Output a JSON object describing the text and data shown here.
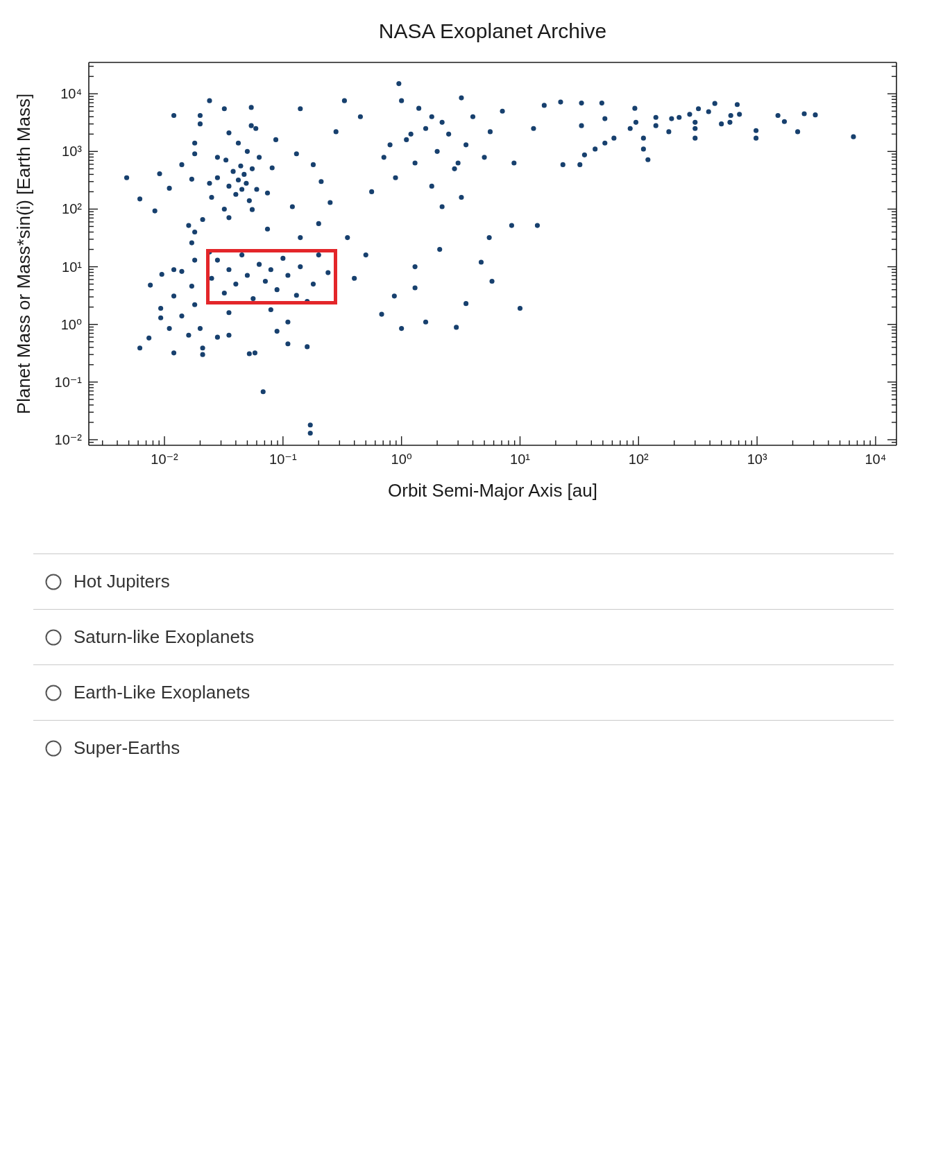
{
  "chart_data": {
    "type": "scatter",
    "title": "NASA Exoplanet Archive",
    "xlabel": "Orbit Semi-Major Axis [au]",
    "ylabel": "Planet Mass or Mass*sin(i) [Earth Mass]",
    "log": "xy",
    "marker": "circle",
    "color": "#17406e",
    "xlim": [
      0.0023,
      15000
    ],
    "ylim": [
      0.008,
      35000
    ],
    "xticks": [
      {
        "value": 0.003,
        "label": null
      },
      {
        "value": 0.004,
        "label": null
      },
      {
        "value": 0.005,
        "label": null
      },
      {
        "value": 0.006,
        "label": null
      },
      {
        "value": 0.007,
        "label": null
      },
      {
        "value": 0.008,
        "label": null
      },
      {
        "value": 0.009,
        "label": null
      },
      {
        "value": 0.01,
        "label": "10⁻²"
      },
      {
        "value": 0.02,
        "label": null
      },
      {
        "value": 0.03,
        "label": null
      },
      {
        "value": 0.04,
        "label": null
      },
      {
        "value": 0.05,
        "label": null
      },
      {
        "value": 0.06,
        "label": null
      },
      {
        "value": 0.07,
        "label": null
      },
      {
        "value": 0.08,
        "label": null
      },
      {
        "value": 0.09,
        "label": null
      },
      {
        "value": 0.1,
        "label": "10⁻¹"
      },
      {
        "value": 0.2,
        "label": null
      },
      {
        "value": 0.3,
        "label": null
      },
      {
        "value": 0.4,
        "label": null
      },
      {
        "value": 0.5,
        "label": null
      },
      {
        "value": 0.6,
        "label": null
      },
      {
        "value": 0.7,
        "label": null
      },
      {
        "value": 0.8,
        "label": null
      },
      {
        "value": 0.9,
        "label": null
      },
      {
        "value": 1,
        "label": "10⁰"
      },
      {
        "value": 2,
        "label": null
      },
      {
        "value": 3,
        "label": null
      },
      {
        "value": 4,
        "label": null
      },
      {
        "value": 5,
        "label": null
      },
      {
        "value": 6,
        "label": null
      },
      {
        "value": 7,
        "label": null
      },
      {
        "value": 8,
        "label": null
      },
      {
        "value": 9,
        "label": null
      },
      {
        "value": 10,
        "label": "10¹"
      },
      {
        "value": 20,
        "label": null
      },
      {
        "value": 30,
        "label": null
      },
      {
        "value": 40,
        "label": null
      },
      {
        "value": 50,
        "label": null
      },
      {
        "value": 60,
        "label": null
      },
      {
        "value": 70,
        "label": null
      },
      {
        "value": 80,
        "label": null
      },
      {
        "value": 90,
        "label": null
      },
      {
        "value": 100,
        "label": "10²"
      },
      {
        "value": 200,
        "label": null
      },
      {
        "value": 300,
        "label": null
      },
      {
        "value": 400,
        "label": null
      },
      {
        "value": 500,
        "label": null
      },
      {
        "value": 600,
        "label": null
      },
      {
        "value": 700,
        "label": null
      },
      {
        "value": 800,
        "label": null
      },
      {
        "value": 900,
        "label": null
      },
      {
        "value": 1000,
        "label": "10³"
      },
      {
        "value": 2000,
        "label": null
      },
      {
        "value": 3000,
        "label": null
      },
      {
        "value": 4000,
        "label": null
      },
      {
        "value": 5000,
        "label": null
      },
      {
        "value": 6000,
        "label": null
      },
      {
        "value": 7000,
        "label": null
      },
      {
        "value": 8000,
        "label": null
      },
      {
        "value": 9000,
        "label": null
      },
      {
        "value": 10000,
        "label": "10⁴"
      }
    ],
    "yticks": [
      {
        "value": 0.009,
        "label": null
      },
      {
        "value": 0.01,
        "label": "10⁻²"
      },
      {
        "value": 0.02,
        "label": null
      },
      {
        "value": 0.03,
        "label": null
      },
      {
        "value": 0.04,
        "label": null
      },
      {
        "value": 0.05,
        "label": null
      },
      {
        "value": 0.06,
        "label": null
      },
      {
        "value": 0.07,
        "label": null
      },
      {
        "value": 0.08,
        "label": null
      },
      {
        "value": 0.09,
        "label": null
      },
      {
        "value": 0.1,
        "label": "10⁻¹"
      },
      {
        "value": 0.2,
        "label": null
      },
      {
        "value": 0.3,
        "label": null
      },
      {
        "value": 0.4,
        "label": null
      },
      {
        "value": 0.5,
        "label": null
      },
      {
        "value": 0.6,
        "label": null
      },
      {
        "value": 0.7,
        "label": null
      },
      {
        "value": 0.8,
        "label": null
      },
      {
        "value": 0.9,
        "label": null
      },
      {
        "value": 1,
        "label": "10⁰"
      },
      {
        "value": 2,
        "label": null
      },
      {
        "value": 3,
        "label": null
      },
      {
        "value": 4,
        "label": null
      },
      {
        "value": 5,
        "label": null
      },
      {
        "value": 6,
        "label": null
      },
      {
        "value": 7,
        "label": null
      },
      {
        "value": 8,
        "label": null
      },
      {
        "value": 9,
        "label": null
      },
      {
        "value": 10,
        "label": "10¹"
      },
      {
        "value": 20,
        "label": null
      },
      {
        "value": 30,
        "label": null
      },
      {
        "value": 40,
        "label": null
      },
      {
        "value": 50,
        "label": null
      },
      {
        "value": 60,
        "label": null
      },
      {
        "value": 70,
        "label": null
      },
      {
        "value": 80,
        "label": null
      },
      {
        "value": 90,
        "label": null
      },
      {
        "value": 100,
        "label": "10²"
      },
      {
        "value": 200,
        "label": null
      },
      {
        "value": 300,
        "label": null
      },
      {
        "value": 400,
        "label": null
      },
      {
        "value": 500,
        "label": null
      },
      {
        "value": 600,
        "label": null
      },
      {
        "value": 700,
        "label": null
      },
      {
        "value": 800,
        "label": null
      },
      {
        "value": 900,
        "label": null
      },
      {
        "value": 1000,
        "label": "10³"
      },
      {
        "value": 2000,
        "label": null
      },
      {
        "value": 3000,
        "label": null
      },
      {
        "value": 4000,
        "label": null
      },
      {
        "value": 5000,
        "label": null
      },
      {
        "value": 6000,
        "label": null
      },
      {
        "value": 7000,
        "label": null
      },
      {
        "value": 8000,
        "label": null
      },
      {
        "value": 9000,
        "label": null
      },
      {
        "value": 10000,
        "label": "10⁴"
      },
      {
        "value": 20000,
        "label": null
      },
      {
        "value": 30000,
        "label": null
      }
    ],
    "x": [
      0.0048,
      0.0062,
      0.0083,
      0.0091,
      0.011,
      0.012,
      0.0062,
      0.0074,
      0.0076,
      0.0093,
      0.0093,
      0.0095,
      0.012,
      0.011,
      0.014,
      0.012,
      0.012,
      0.016,
      0.017,
      0.014,
      0.021,
      0.021,
      0.02,
      0.018,
      0.018,
      0.017,
      0.018,
      0.016,
      0.021,
      0.014,
      0.017,
      0.018,
      0.018,
      0.02,
      0.02,
      0.024,
      0.035,
      0.032,
      0.054,
      0.054,
      0.028,
      0.035,
      0.058,
      0.068,
      0.025,
      0.028,
      0.032,
      0.033,
      0.035,
      0.038,
      0.04,
      0.042,
      0.044,
      0.045,
      0.047,
      0.049,
      0.05,
      0.052,
      0.055,
      0.06,
      0.035,
      0.042,
      0.063,
      0.028,
      0.024,
      0.025,
      0.028,
      0.032,
      0.035,
      0.04,
      0.045,
      0.05,
      0.056,
      0.063,
      0.071,
      0.079,
      0.089,
      0.1,
      0.11,
      0.13,
      0.14,
      0.18,
      0.2,
      0.24,
      0.035,
      0.079,
      0.024,
      0.16,
      0.074,
      0.12,
      0.14,
      0.2,
      0.055,
      0.11,
      0.089,
      0.16,
      0.052,
      0.17,
      0.17,
      0.11,
      0.059,
      0.074,
      0.081,
      0.087,
      0.13,
      0.14,
      0.18,
      0.21,
      0.28,
      0.33,
      0.25,
      0.68,
      1,
      1.6,
      2.9,
      3.5,
      0.87,
      1.3,
      5.8,
      4.7,
      2.1,
      5.5,
      8.5,
      0.4,
      0.5,
      0.35,
      1.3,
      10,
      0.56,
      0.71,
      0.89,
      1.1,
      1.3,
      1.6,
      1.8,
      2,
      2.5,
      2.8,
      3.5,
      4,
      5,
      5.6,
      7.1,
      3.2,
      1,
      0.95,
      3.2,
      2.2,
      0.45,
      1.4,
      1.2,
      2.2,
      0.8,
      3,
      1.8,
      14,
      8.9,
      13,
      16,
      23,
      32,
      35,
      43,
      52,
      62,
      85,
      95,
      93,
      49,
      33,
      22,
      33,
      52,
      120,
      110,
      110,
      140,
      140,
      180,
      190,
      220,
      300,
      300,
      300,
      270,
      320,
      390,
      440,
      500,
      590,
      600,
      680,
      710,
      980,
      980,
      1500,
      1700,
      2200,
      2500,
      3100,
      6500
    ],
    "values": [
      350,
      150,
      93,
      410,
      230,
      4200,
      0.39,
      0.58,
      4.8,
      1.3,
      1.9,
      7.4,
      0.32,
      0.85,
      1.4,
      3.1,
      8.9,
      0.65,
      4.6,
      8.3,
      0.3,
      0.39,
      0.85,
      2.2,
      13,
      26,
      40,
      52,
      66,
      590,
      330,
      910,
      1400,
      3000,
      4200,
      7600,
      2100,
      5500,
      5800,
      2800,
      0.6,
      0.65,
      0.32,
      0.068,
      160,
      350,
      100,
      710,
      250,
      450,
      180,
      320,
      560,
      220,
      400,
      280,
      1000,
      140,
      500,
      220,
      71,
      1400,
      790,
      790,
      280,
      6.3,
      13,
      3.5,
      8.9,
      5,
      16,
      7.1,
      2.8,
      11,
      5.6,
      8.9,
      4,
      14,
      7.1,
      3.2,
      10,
      5,
      16,
      7.9,
      1.6,
      1.8,
      18,
      2.5,
      45,
      110,
      32,
      56,
      98,
      1.1,
      0.76,
      0.41,
      0.31,
      0.013,
      0.018,
      0.46,
      2500,
      190,
      520,
      1600,
      910,
      5500,
      590,
      300,
      2200,
      7600,
      130,
      1.5,
      0.85,
      1.1,
      0.89,
      2.3,
      3.1,
      4.3,
      5.6,
      12,
      20,
      32,
      52,
      6.3,
      16,
      32,
      10,
      1.9,
      200,
      790,
      350,
      1600,
      630,
      2500,
      250,
      1000,
      2000,
      500,
      1300,
      4000,
      790,
      2200,
      5000,
      160,
      7600,
      15000,
      8500,
      110,
      4000,
      5600,
      2000,
      3200,
      1300,
      630,
      4000,
      52,
      630,
      2500,
      6300,
      590,
      590,
      870,
      1100,
      1400,
      1700,
      2500,
      3200,
      5600,
      6900,
      6900,
      7200,
      2800,
      3700,
      720,
      1100,
      1700,
      2800,
      3900,
      2200,
      3700,
      3900,
      1700,
      2500,
      3200,
      4400,
      5500,
      4900,
      6800,
      3000,
      3200,
      4200,
      6500,
      4400,
      1700,
      2300,
      4200,
      3300,
      2200,
      4500,
      4300,
      1800
    ],
    "annotations": [
      "Hot Jupiters",
      "Saturn-like Exoplanets",
      "Earth-Like Exoplanets",
      "Super-Earths"
    ]
  }
}
